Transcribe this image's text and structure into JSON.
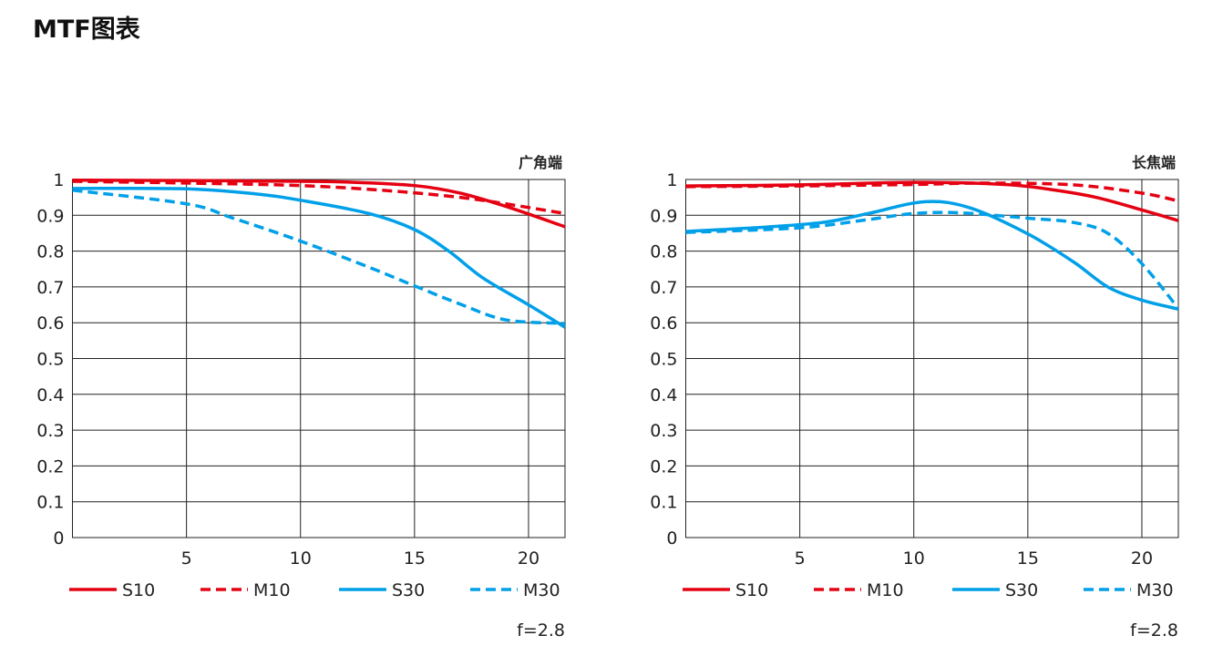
{
  "page_title": "MTF图表",
  "colors": {
    "red": "#e50012",
    "blue": "#00a0e9",
    "grid": "#222222"
  },
  "chart_data": [
    {
      "type": "line",
      "title": "广角端",
      "note": "f=2.8",
      "xlim": [
        0,
        21.6
      ],
      "ylim": [
        0,
        1
      ],
      "xticks": [
        5,
        10,
        15,
        20
      ],
      "xtick_labels": [
        "5",
        "10",
        "15",
        "20"
      ],
      "yticks": [
        0,
        0.1,
        0.2,
        0.3,
        0.4,
        0.5,
        0.6,
        0.7,
        0.8,
        0.9,
        1
      ],
      "ytick_labels": [
        "0",
        "0.1",
        "0.2",
        "0.3",
        "0.4",
        "0.5",
        "0.6",
        "0.7",
        "0.8",
        "0.9",
        "1"
      ],
      "grid": true,
      "legend_position": "bottom",
      "series": [
        {
          "name": "S10",
          "color": "red",
          "style": "solid",
          "x": [
            0,
            5,
            10,
            12,
            15,
            17,
            19,
            21.6
          ],
          "y": [
            0.998,
            0.997,
            0.995,
            0.993,
            0.983,
            0.962,
            0.925,
            0.868
          ]
        },
        {
          "name": "M10",
          "color": "red",
          "style": "dashed",
          "x": [
            0,
            5,
            10,
            14,
            17,
            19,
            21.6
          ],
          "y": [
            0.995,
            0.99,
            0.983,
            0.968,
            0.95,
            0.932,
            0.905
          ]
        },
        {
          "name": "S30",
          "color": "blue",
          "style": "solid",
          "x": [
            0,
            5,
            8,
            10,
            13,
            15,
            16.5,
            18,
            20,
            21.6
          ],
          "y": [
            0.975,
            0.974,
            0.96,
            0.942,
            0.905,
            0.86,
            0.8,
            0.725,
            0.65,
            0.587
          ]
        },
        {
          "name": "M30",
          "color": "blue",
          "style": "dashed",
          "x": [
            0,
            5,
            7,
            10,
            13,
            15,
            17,
            19,
            21.6
          ],
          "y": [
            0.97,
            0.932,
            0.893,
            0.828,
            0.755,
            0.703,
            0.652,
            0.608,
            0.598
          ]
        }
      ]
    },
    {
      "type": "line",
      "title": "长焦端",
      "note": "f=2.8",
      "xlim": [
        0,
        21.6
      ],
      "ylim": [
        0,
        1
      ],
      "xticks": [
        5,
        10,
        15,
        20
      ],
      "xtick_labels": [
        "5",
        "10",
        "15",
        "20"
      ],
      "yticks": [
        0,
        0.1,
        0.2,
        0.3,
        0.4,
        0.5,
        0.6,
        0.7,
        0.8,
        0.9,
        1
      ],
      "ytick_labels": [
        "0",
        "0.1",
        "0.2",
        "0.3",
        "0.4",
        "0.5",
        "0.6",
        "0.7",
        "0.8",
        "0.9",
        "1"
      ],
      "grid": true,
      "legend_position": "bottom",
      "series": [
        {
          "name": "S10",
          "color": "red",
          "style": "solid",
          "x": [
            0,
            5,
            10,
            14,
            16,
            18,
            20,
            21.6
          ],
          "y": [
            0.982,
            0.985,
            0.992,
            0.986,
            0.972,
            0.95,
            0.915,
            0.885
          ]
        },
        {
          "name": "M10",
          "color": "red",
          "style": "dashed",
          "x": [
            0,
            5,
            10,
            13,
            17,
            20,
            21.6
          ],
          "y": [
            0.98,
            0.982,
            0.986,
            0.99,
            0.985,
            0.962,
            0.94
          ]
        },
        {
          "name": "S30",
          "color": "blue",
          "style": "solid",
          "x": [
            0,
            3,
            6,
            8,
            10.5,
            12.5,
            15,
            17,
            18.5,
            20,
            21.6
          ],
          "y": [
            0.855,
            0.865,
            0.88,
            0.905,
            0.938,
            0.92,
            0.848,
            0.77,
            0.7,
            0.663,
            0.638
          ]
        },
        {
          "name": "M30",
          "color": "blue",
          "style": "dashed",
          "x": [
            0,
            5,
            8,
            10,
            12,
            15,
            17,
            18.5,
            20,
            21.6
          ],
          "y": [
            0.852,
            0.865,
            0.888,
            0.905,
            0.907,
            0.892,
            0.88,
            0.85,
            0.765,
            0.64
          ]
        }
      ]
    }
  ]
}
